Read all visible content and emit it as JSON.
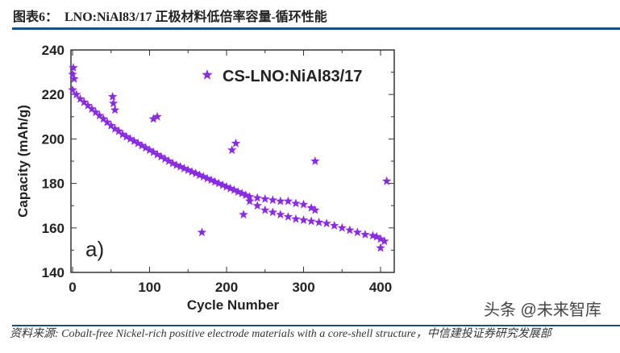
{
  "header": {
    "title": "图表6：  LNO:NiAl83/17 正极材料低倍率容量-循环性能"
  },
  "footer": {
    "source": "资料来源: Cobalt-free Nickel-rich positive electrode materials with a core-shell structure，中信建投证券研究发展部",
    "watermark": "头条 @未来智库"
  },
  "chart_data": {
    "type": "scatter",
    "title": "",
    "xlabel": "Cycle Number",
    "ylabel": "Capacity (mAh/g)",
    "xlim": [
      0,
      420
    ],
    "ylim": [
      140,
      240
    ],
    "xticks": [
      "0",
      "100",
      "200",
      "300",
      "400"
    ],
    "yticks": [
      "140",
      "160",
      "180",
      "200",
      "220",
      "240"
    ],
    "panel_label": "a)",
    "legend_position": "top-right",
    "grid": false,
    "marker": "star",
    "color": "#8a2be2",
    "series": [
      {
        "name": "CS-LNO:NiAl83/17",
        "x": [
          0,
          5,
          10,
          15,
          20,
          25,
          30,
          35,
          40,
          45,
          50,
          55,
          60,
          65,
          70,
          75,
          80,
          85,
          90,
          95,
          100,
          105,
          110,
          115,
          120,
          125,
          130,
          135,
          140,
          145,
          150,
          155,
          160,
          165,
          170,
          175,
          180,
          185,
          190,
          195,
          200,
          205,
          210,
          215,
          220,
          225,
          230,
          240,
          250,
          260,
          270,
          280,
          290,
          300,
          310,
          320,
          330,
          340,
          350,
          360,
          370,
          380,
          390,
          395,
          400,
          230,
          240,
          250,
          260,
          270,
          280,
          290,
          300,
          310,
          315,
          0,
          1,
          2,
          52,
          53,
          55,
          105,
          110,
          168,
          207,
          212,
          222,
          315,
          408,
          400,
          405
        ],
        "y": [
          222,
          220,
          218,
          216.5,
          215,
          213.5,
          212,
          210.5,
          209,
          207.5,
          206,
          204.5,
          203.5,
          202,
          201,
          200,
          199,
          198,
          197,
          196,
          195,
          194,
          193,
          192,
          191,
          190,
          189,
          188.2,
          187.5,
          186.7,
          186,
          185.2,
          184.5,
          183.7,
          183,
          182.2,
          181.5,
          180.7,
          180,
          179.2,
          178.5,
          177.7,
          177,
          176.2,
          175.5,
          174.7,
          172,
          170,
          168,
          167,
          166,
          165,
          164,
          163.5,
          163,
          162.5,
          162,
          161,
          160,
          159,
          158,
          157,
          156.5,
          156,
          155,
          174,
          173.5,
          173,
          172.5,
          172,
          172,
          171,
          170.5,
          169,
          168,
          229,
          232,
          227,
          219,
          216,
          213,
          209,
          210,
          158,
          195,
          198,
          166,
          190,
          181,
          151,
          154
        ]
      }
    ]
  }
}
